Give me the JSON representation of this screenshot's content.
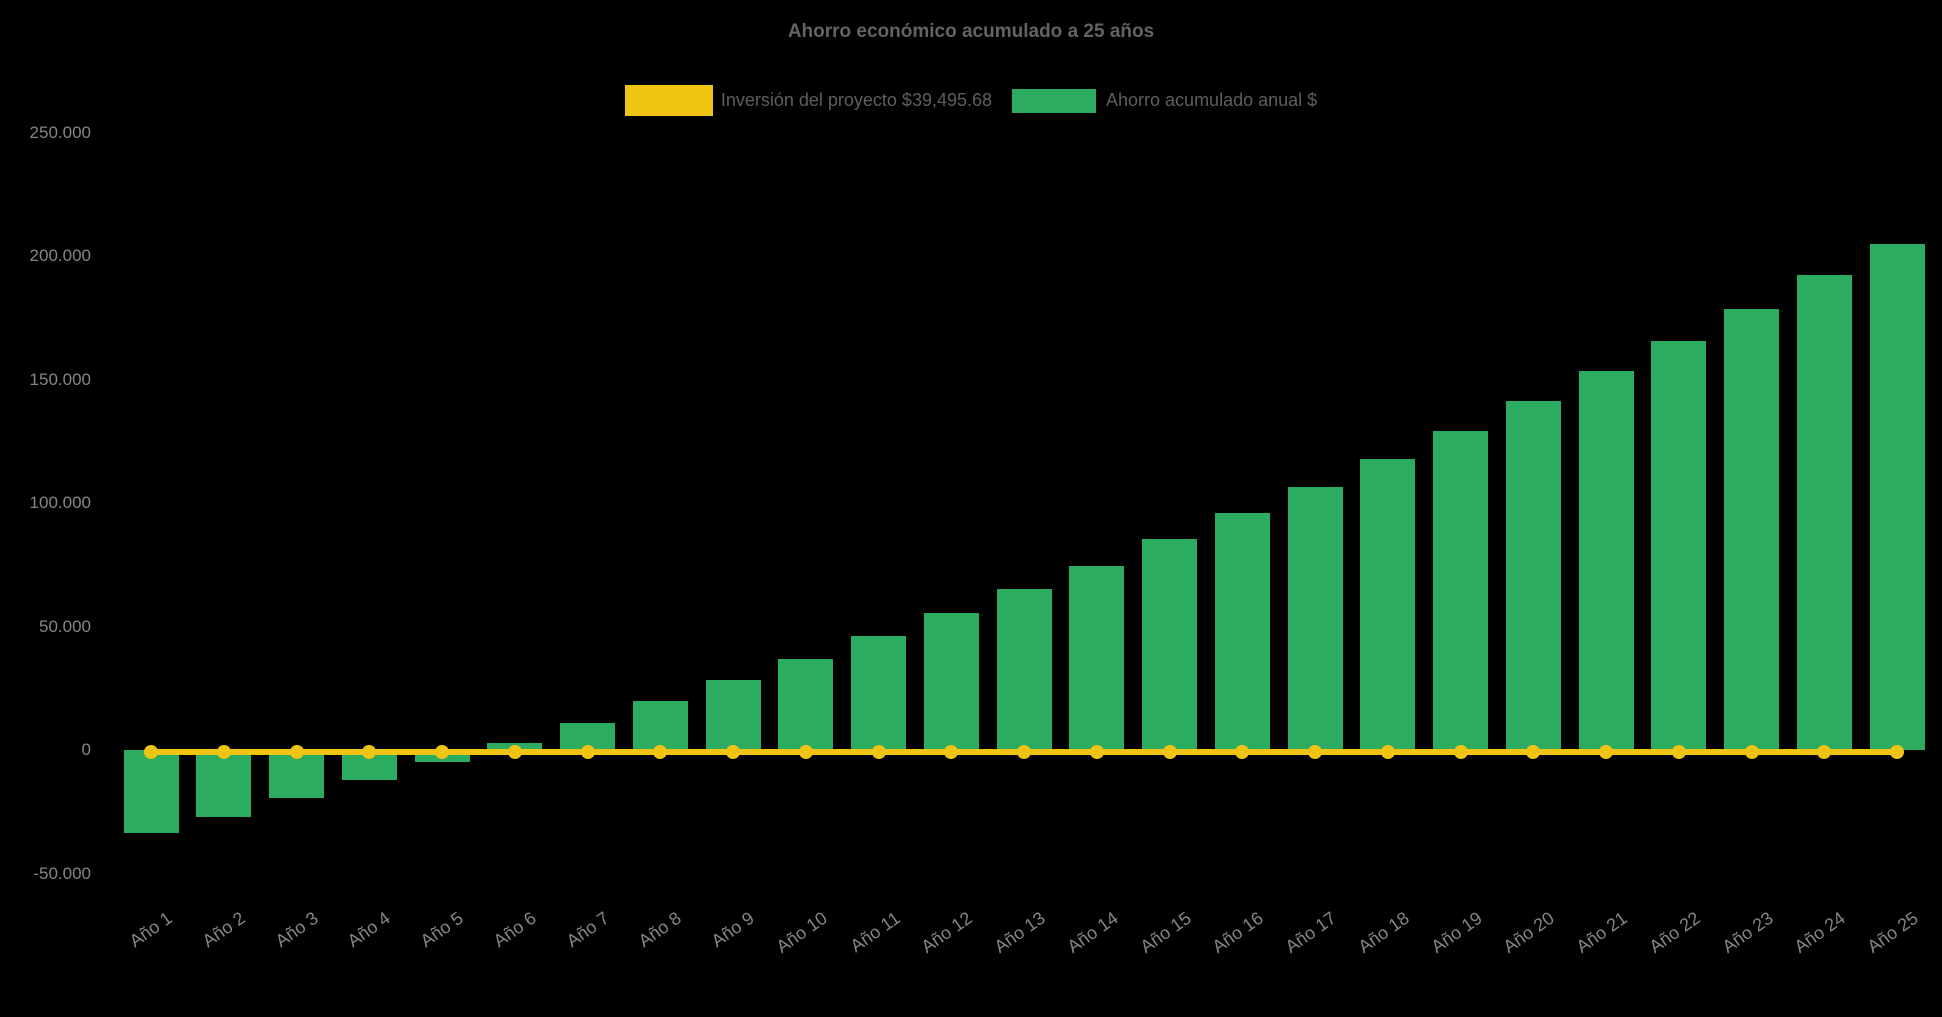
{
  "title": "Ahorro económico acumulado a 25 años",
  "legend": {
    "items": [
      {
        "label": "Inversión del proyecto $39,495.68",
        "color": "#F0C412",
        "series": "investment"
      },
      {
        "label": "Ahorro acumulado anual $",
        "color": "#2BAC61",
        "series": "savings"
      }
    ]
  },
  "chart_data": {
    "type": "bar",
    "title": "Ahorro económico acumulado a 25 años",
    "xlabel": "",
    "ylabel": "",
    "categories": [
      "Año 1",
      "Año 2",
      "Año 3",
      "Año 4",
      "Año 5",
      "Año 6",
      "Año 7",
      "Año 8",
      "Año 9",
      "Año 10",
      "Año 11",
      "Año 12",
      "Año 13",
      "Año 14",
      "Año 15",
      "Año 16",
      "Año 17",
      "Año 18",
      "Año 19",
      "Año 20",
      "Año 21",
      "Año 22",
      "Año 23",
      "Año 24",
      "Año 25"
    ],
    "series": [
      {
        "name": "Inversión del proyecto $39,495.68",
        "type": "line",
        "color": "#F0C412",
        "marker": "circle",
        "values": [
          0,
          0,
          0,
          0,
          0,
          0,
          0,
          0,
          0,
          0,
          0,
          0,
          0,
          0,
          0,
          0,
          0,
          0,
          0,
          0,
          0,
          0,
          0,
          0,
          0
        ]
      },
      {
        "name": "Ahorro acumulado anual $",
        "type": "bar",
        "color": "#2BAC61",
        "values": [
          -33750,
          -27000,
          -19600,
          -12200,
          -4800,
          3000,
          11050,
          19950,
          28350,
          37000,
          46150,
          55450,
          65100,
          74600,
          85300,
          95850,
          106500,
          117800,
          129000,
          141250,
          153300,
          165700,
          178600,
          192350,
          205000
        ]
      }
    ],
    "yticks": {
      "values": [
        250000,
        200000,
        150000,
        100000,
        50000,
        0,
        -50000
      ],
      "labels": [
        "250.000",
        "200.000",
        "150.000",
        "100.000",
        "50.000",
        "0",
        "-50.000"
      ]
    },
    "ylim": [
      -50000,
      250000
    ],
    "grid": false,
    "legend_position": "top",
    "colors": {
      "background": "#000000",
      "title_text": "#636363",
      "legend_text": "#5e5e5e",
      "axis_text": "#868686"
    }
  }
}
